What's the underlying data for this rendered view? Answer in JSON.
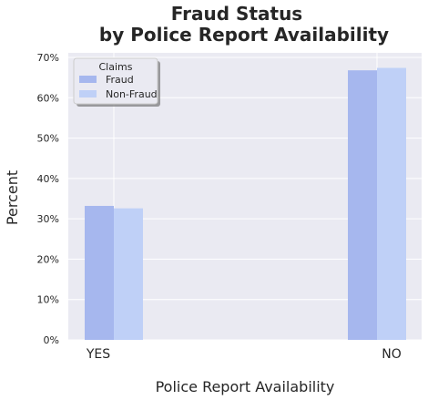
{
  "chart_data": {
    "type": "bar",
    "title": "Fraud Status",
    "subtitle": "by Police Report Availability",
    "xlabel": "Police Report Availability",
    "ylabel": "Percent",
    "categories": [
      "YES",
      "NO"
    ],
    "series": [
      {
        "name": "Fraud",
        "values": [
          33.2,
          66.8
        ],
        "color": "#a6b7ee"
      },
      {
        "name": "Non-Fraud",
        "values": [
          32.6,
          67.4
        ],
        "color": "#bfd0f7"
      }
    ],
    "ylim": [
      0,
      70
    ],
    "yticks": [
      0,
      10,
      20,
      30,
      40,
      50,
      60,
      70
    ],
    "ytick_labels": [
      "0%",
      "10%",
      "20%",
      "30%",
      "40%",
      "50%",
      "60%",
      "70%"
    ],
    "legend": {
      "title": "Claims",
      "position": "top-left"
    },
    "grid": true,
    "plot_background": "#eaeaf2"
  }
}
